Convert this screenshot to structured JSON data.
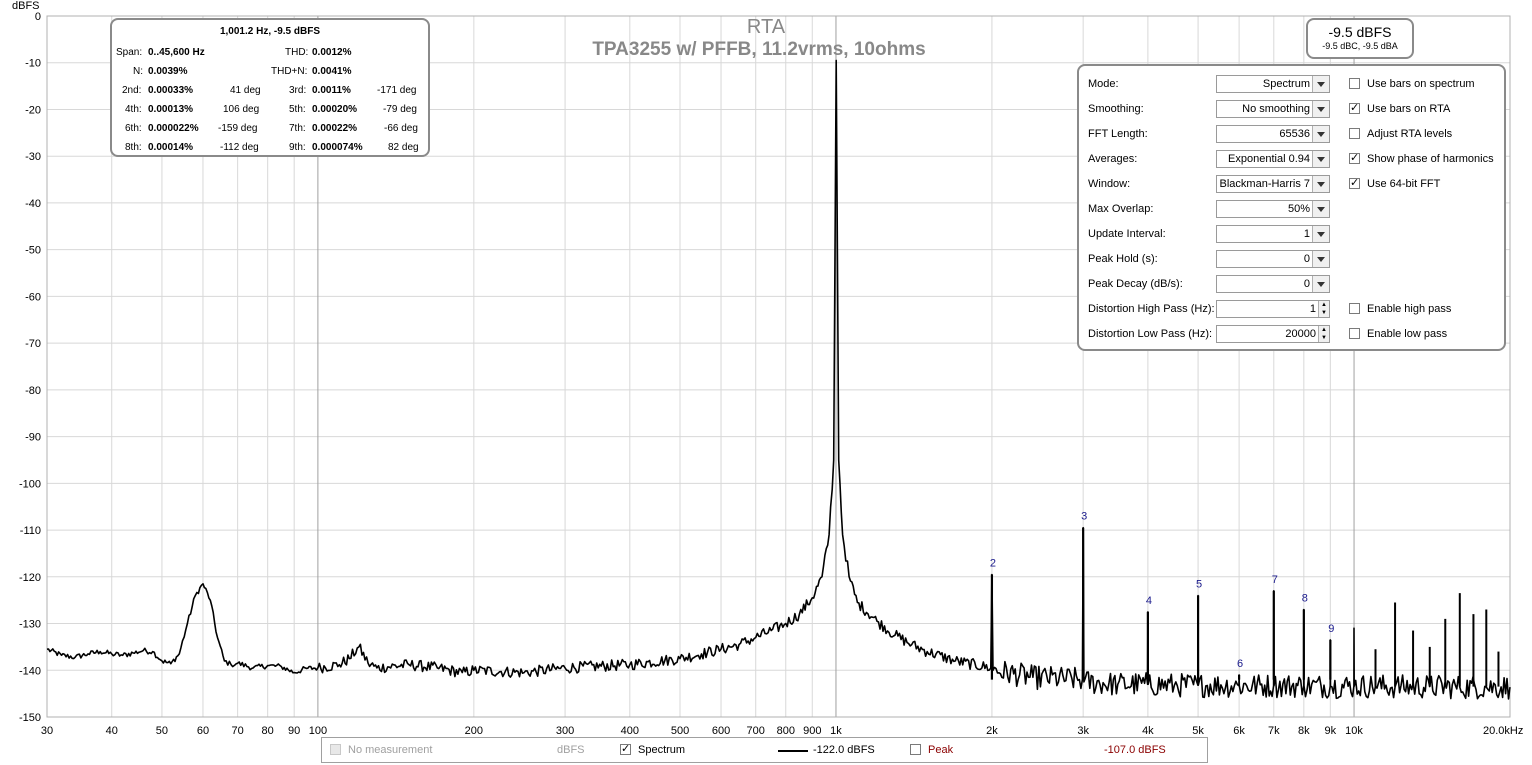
{
  "chart_data": {
    "type": "line",
    "title": "RTA",
    "subtitle": "TPA3255 w/ PFFB, 11.2vrms, 10ohms",
    "ylabel": "dBFS",
    "xlabel_end": "20.0kHz",
    "xlim": [
      30,
      20000
    ],
    "ylim": [
      -150,
      0
    ],
    "xscale": "log",
    "grid": true,
    "yticks": [
      0,
      -10,
      -20,
      -30,
      -40,
      -50,
      -60,
      -70,
      -80,
      -90,
      -100,
      -110,
      -120,
      -130,
      -140,
      -150
    ],
    "xticks": [
      {
        "v": 30,
        "label": "30"
      },
      {
        "v": 40,
        "label": "40"
      },
      {
        "v": 50,
        "label": "50"
      },
      {
        "v": 60,
        "label": "60"
      },
      {
        "v": 70,
        "label": "70"
      },
      {
        "v": 80,
        "label": "80"
      },
      {
        "v": 90,
        "label": "90"
      },
      {
        "v": 100,
        "label": "100"
      },
      {
        "v": 200,
        "label": "200"
      },
      {
        "v": 300,
        "label": "300"
      },
      {
        "v": 400,
        "label": "400"
      },
      {
        "v": 500,
        "label": "500"
      },
      {
        "v": 600,
        "label": "600"
      },
      {
        "v": 700,
        "label": "700"
      },
      {
        "v": 800,
        "label": "800"
      },
      {
        "v": 900,
        "label": "900"
      },
      {
        "v": 1000,
        "label": "1k"
      },
      {
        "v": 2000,
        "label": "2k"
      },
      {
        "v": 3000,
        "label": "3k"
      },
      {
        "v": 4000,
        "label": "4k"
      },
      {
        "v": 5000,
        "label": "5k"
      },
      {
        "v": 6000,
        "label": "6k"
      },
      {
        "v": 7000,
        "label": "7k"
      },
      {
        "v": 8000,
        "label": "8k"
      },
      {
        "v": 9000,
        "label": "9k"
      },
      {
        "v": 10000,
        "label": "10k"
      }
    ],
    "series": [
      {
        "name": "Spectrum",
        "color": "#000000",
        "points": [
          [
            30,
            -135.5
          ],
          [
            32,
            -136.8
          ],
          [
            34,
            -137.2
          ],
          [
            36,
            -136.5
          ],
          [
            38,
            -136.0
          ],
          [
            40,
            -136.5
          ],
          [
            42,
            -136.8
          ],
          [
            44,
            -136.3
          ],
          [
            46,
            -135.8
          ],
          [
            48,
            -136.0
          ],
          [
            50,
            -138.0
          ],
          [
            52,
            -138.6
          ],
          [
            54,
            -136.5
          ],
          [
            56,
            -130.0
          ],
          [
            58,
            -124.0
          ],
          [
            60,
            -121.5
          ],
          [
            62,
            -125.0
          ],
          [
            64,
            -133.0
          ],
          [
            66,
            -138.0
          ],
          [
            68,
            -138.8
          ],
          [
            70,
            -138.5
          ],
          [
            75,
            -139.5
          ],
          [
            80,
            -139.0
          ],
          [
            85,
            -139.2
          ],
          [
            90,
            -140.5
          ],
          [
            95,
            -139.6
          ],
          [
            100,
            -139.5
          ],
          [
            110,
            -138.8
          ],
          [
            115,
            -137.5
          ],
          [
            120,
            -135.0
          ],
          [
            125,
            -138.5
          ],
          [
            130,
            -139.5
          ],
          [
            150,
            -138.8
          ],
          [
            170,
            -139.5
          ],
          [
            190,
            -140.5
          ],
          [
            200,
            -140.0
          ],
          [
            250,
            -140.5
          ],
          [
            300,
            -139.5
          ],
          [
            400,
            -138.8
          ],
          [
            500,
            -137.5
          ],
          [
            550,
            -136.5
          ],
          [
            600,
            -135.5
          ],
          [
            650,
            -134.5
          ],
          [
            700,
            -133.0
          ],
          [
            750,
            -131.5
          ],
          [
            800,
            -130.0
          ],
          [
            850,
            -128.0
          ],
          [
            900,
            -124.5
          ],
          [
            940,
            -120.0
          ],
          [
            970,
            -111.0
          ],
          [
            990,
            -95.0
          ],
          [
            1001.2,
            -9.5
          ],
          [
            1012,
            -95.0
          ],
          [
            1030,
            -111.0
          ],
          [
            1060,
            -120.0
          ],
          [
            1100,
            -125.5
          ],
          [
            1200,
            -129.5
          ],
          [
            1300,
            -132.5
          ],
          [
            1400,
            -134.5
          ],
          [
            1500,
            -136.0
          ],
          [
            1700,
            -138.0
          ],
          [
            1990,
            -139.5
          ],
          [
            2000,
            -119.5
          ],
          [
            2010,
            -140.0
          ],
          [
            2400,
            -141.5
          ],
          [
            2990,
            -142.0
          ],
          [
            3000,
            -109.5
          ],
          [
            3010,
            -142.5
          ],
          [
            3500,
            -143.0
          ],
          [
            3995,
            -143.0
          ],
          [
            4000,
            -127.5
          ],
          [
            4005,
            -143.0
          ],
          [
            4500,
            -143.2
          ],
          [
            4995,
            -143.2
          ],
          [
            5000,
            -124.0
          ],
          [
            5005,
            -143.2
          ],
          [
            5995,
            -143.3
          ],
          [
            6000,
            -141.0
          ],
          [
            6005,
            -143.3
          ],
          [
            6995,
            -143.3
          ],
          [
            7000,
            -123.0
          ],
          [
            7005,
            -143.3
          ],
          [
            7995,
            -143.3
          ],
          [
            8000,
            -127.0
          ],
          [
            8005,
            -143.3
          ],
          [
            8995,
            -143.4
          ],
          [
            9000,
            -133.5
          ],
          [
            9005,
            -143.4
          ],
          [
            9995,
            -143.4
          ],
          [
            10000,
            -131.0
          ],
          [
            10005,
            -143.4
          ],
          [
            11000,
            -143.4
          ],
          [
            12000,
            -143.5
          ],
          [
            14000,
            -143.5
          ],
          [
            16000,
            -143.6
          ],
          [
            18000,
            -143.6
          ],
          [
            20000,
            -143.6
          ]
        ]
      }
    ],
    "harmonic_labels": [
      {
        "n": "2",
        "x": 2000,
        "y": -119.5
      },
      {
        "n": "3",
        "x": 3000,
        "y": -109.5
      },
      {
        "n": "4",
        "x": 4000,
        "y": -127.5
      },
      {
        "n": "5",
        "x": 5000,
        "y": -124.0
      },
      {
        "n": "6",
        "x": 6000,
        "y": -141.0
      },
      {
        "n": "7",
        "x": 7000,
        "y": -123.0
      },
      {
        "n": "8",
        "x": 8000,
        "y": -127.0
      },
      {
        "n": "9",
        "x": 9000,
        "y": -133.5
      }
    ],
    "extra_spurs": [
      {
        "x": 11000,
        "y": -135.5
      },
      {
        "x": 12000,
        "y": -125.5
      },
      {
        "x": 13000,
        "y": -131.5
      },
      {
        "x": 14000,
        "y": -135.0
      },
      {
        "x": 15000,
        "y": -129.0
      },
      {
        "x": 16000,
        "y": -123.5
      },
      {
        "x": 17000,
        "y": -128.0
      },
      {
        "x": 18000,
        "y": -127.0
      },
      {
        "x": 19000,
        "y": -136.0
      }
    ]
  },
  "distortion_panel": {
    "header": "1,001.2 Hz, -9.5 dBFS",
    "span_label": "Span:",
    "span_value": "0..45,600 Hz",
    "thd_label": "THD:",
    "thd_value": "0.0012%",
    "n_label": "N:",
    "n_value": "0.0039%",
    "thdn_label": "THD+N:",
    "thdn_value": "0.0041%",
    "h2_label": "2nd:",
    "h2_value": "0.00033%",
    "h2_phase": "41 deg",
    "h3_label": "3rd:",
    "h3_value": "0.0011%",
    "h3_phase": "-171 deg",
    "h4_label": "4th:",
    "h4_value": "0.00013%",
    "h4_phase": "106 deg",
    "h5_label": "5th:",
    "h5_value": "0.00020%",
    "h5_phase": "-79 deg",
    "h6_label": "6th:",
    "h6_value": "0.000022%",
    "h6_phase": "-159 deg",
    "h7_label": "7th:",
    "h7_value": "0.00022%",
    "h7_phase": "-66 deg",
    "h8_label": "8th:",
    "h8_value": "0.00014%",
    "h8_phase": "-112 deg",
    "h9_label": "9th:",
    "h9_value": "0.000074%",
    "h9_phase": "82 deg"
  },
  "level_box": {
    "main": "-9.5 dBFS",
    "sub": "-9.5 dBC, -9.5 dBA"
  },
  "settings": {
    "mode_label": "Mode:",
    "mode_value": "Spectrum",
    "smoothing_label": "Smoothing:",
    "smoothing_value": "No  smoothing",
    "fft_label": "FFT Length:",
    "fft_value": "65536",
    "averages_label": "Averages:",
    "averages_value": "Exponential 0.94",
    "window_label": "Window:",
    "window_value": "Blackman-Harris 7",
    "overlap_label": "Max Overlap:",
    "overlap_value": "50%",
    "update_label": "Update Interval:",
    "update_value": "1",
    "peakhold_label": "Peak Hold (s):",
    "peakhold_value": "0",
    "peakdecay_label": "Peak Decay (dB/s):",
    "peakdecay_value": "0",
    "hp_label": "Distortion High Pass (Hz):",
    "hp_value": "1",
    "lp_label": "Distortion Low Pass (Hz):",
    "lp_value": "20000",
    "cb_bars_spectrum": "Use bars on spectrum",
    "cb_bars_rta": "Use bars on RTA",
    "cb_adjust_rta": "Adjust RTA levels",
    "cb_phase": "Show phase of harmonics",
    "cb_64bit": "Use 64-bit FFT",
    "cb_highpass": "Enable high pass",
    "cb_lowpass": "Enable low pass"
  },
  "legend": {
    "no_measurement": "No measurement",
    "unit1": "dBFS",
    "spectrum": "Spectrum",
    "spectrum_value": "-122.0 dBFS",
    "peak": "Peak",
    "peak_value": "-107.0 dBFS",
    "peak_color": "#8b0000"
  }
}
